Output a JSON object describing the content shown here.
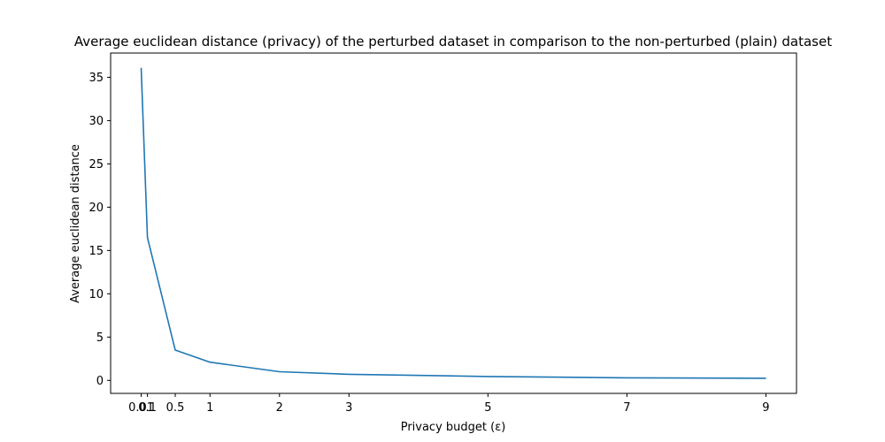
{
  "chart_data": {
    "type": "line",
    "title": "Average euclidean distance (privacy) of the perturbed dataset in comparison to the non-perturbed (plain) dataset",
    "xlabel": "Privacy budget (ε)",
    "ylabel": "Average euclidean distance",
    "x": [
      0.01,
      0.1,
      0.5,
      1,
      2,
      3,
      5,
      7,
      9
    ],
    "xticks": [
      0.01,
      0.1,
      0.5,
      1,
      2,
      3,
      5,
      7,
      9
    ],
    "xtick_labels": [
      "0.01",
      "0.1",
      "0.5",
      "1",
      "2",
      "3",
      "5",
      "7",
      "9"
    ],
    "yticks": [
      0,
      5,
      10,
      15,
      20,
      25,
      30,
      35
    ],
    "xlim": [
      -0.43,
      9.44
    ],
    "ylim": [
      -1.5,
      37.8
    ],
    "grid": false,
    "series": [
      {
        "values": [
          36.1,
          16.5,
          3.5,
          2.1,
          1.0,
          0.7,
          0.45,
          0.3,
          0.25
        ],
        "color": "#1f77b4"
      }
    ]
  }
}
